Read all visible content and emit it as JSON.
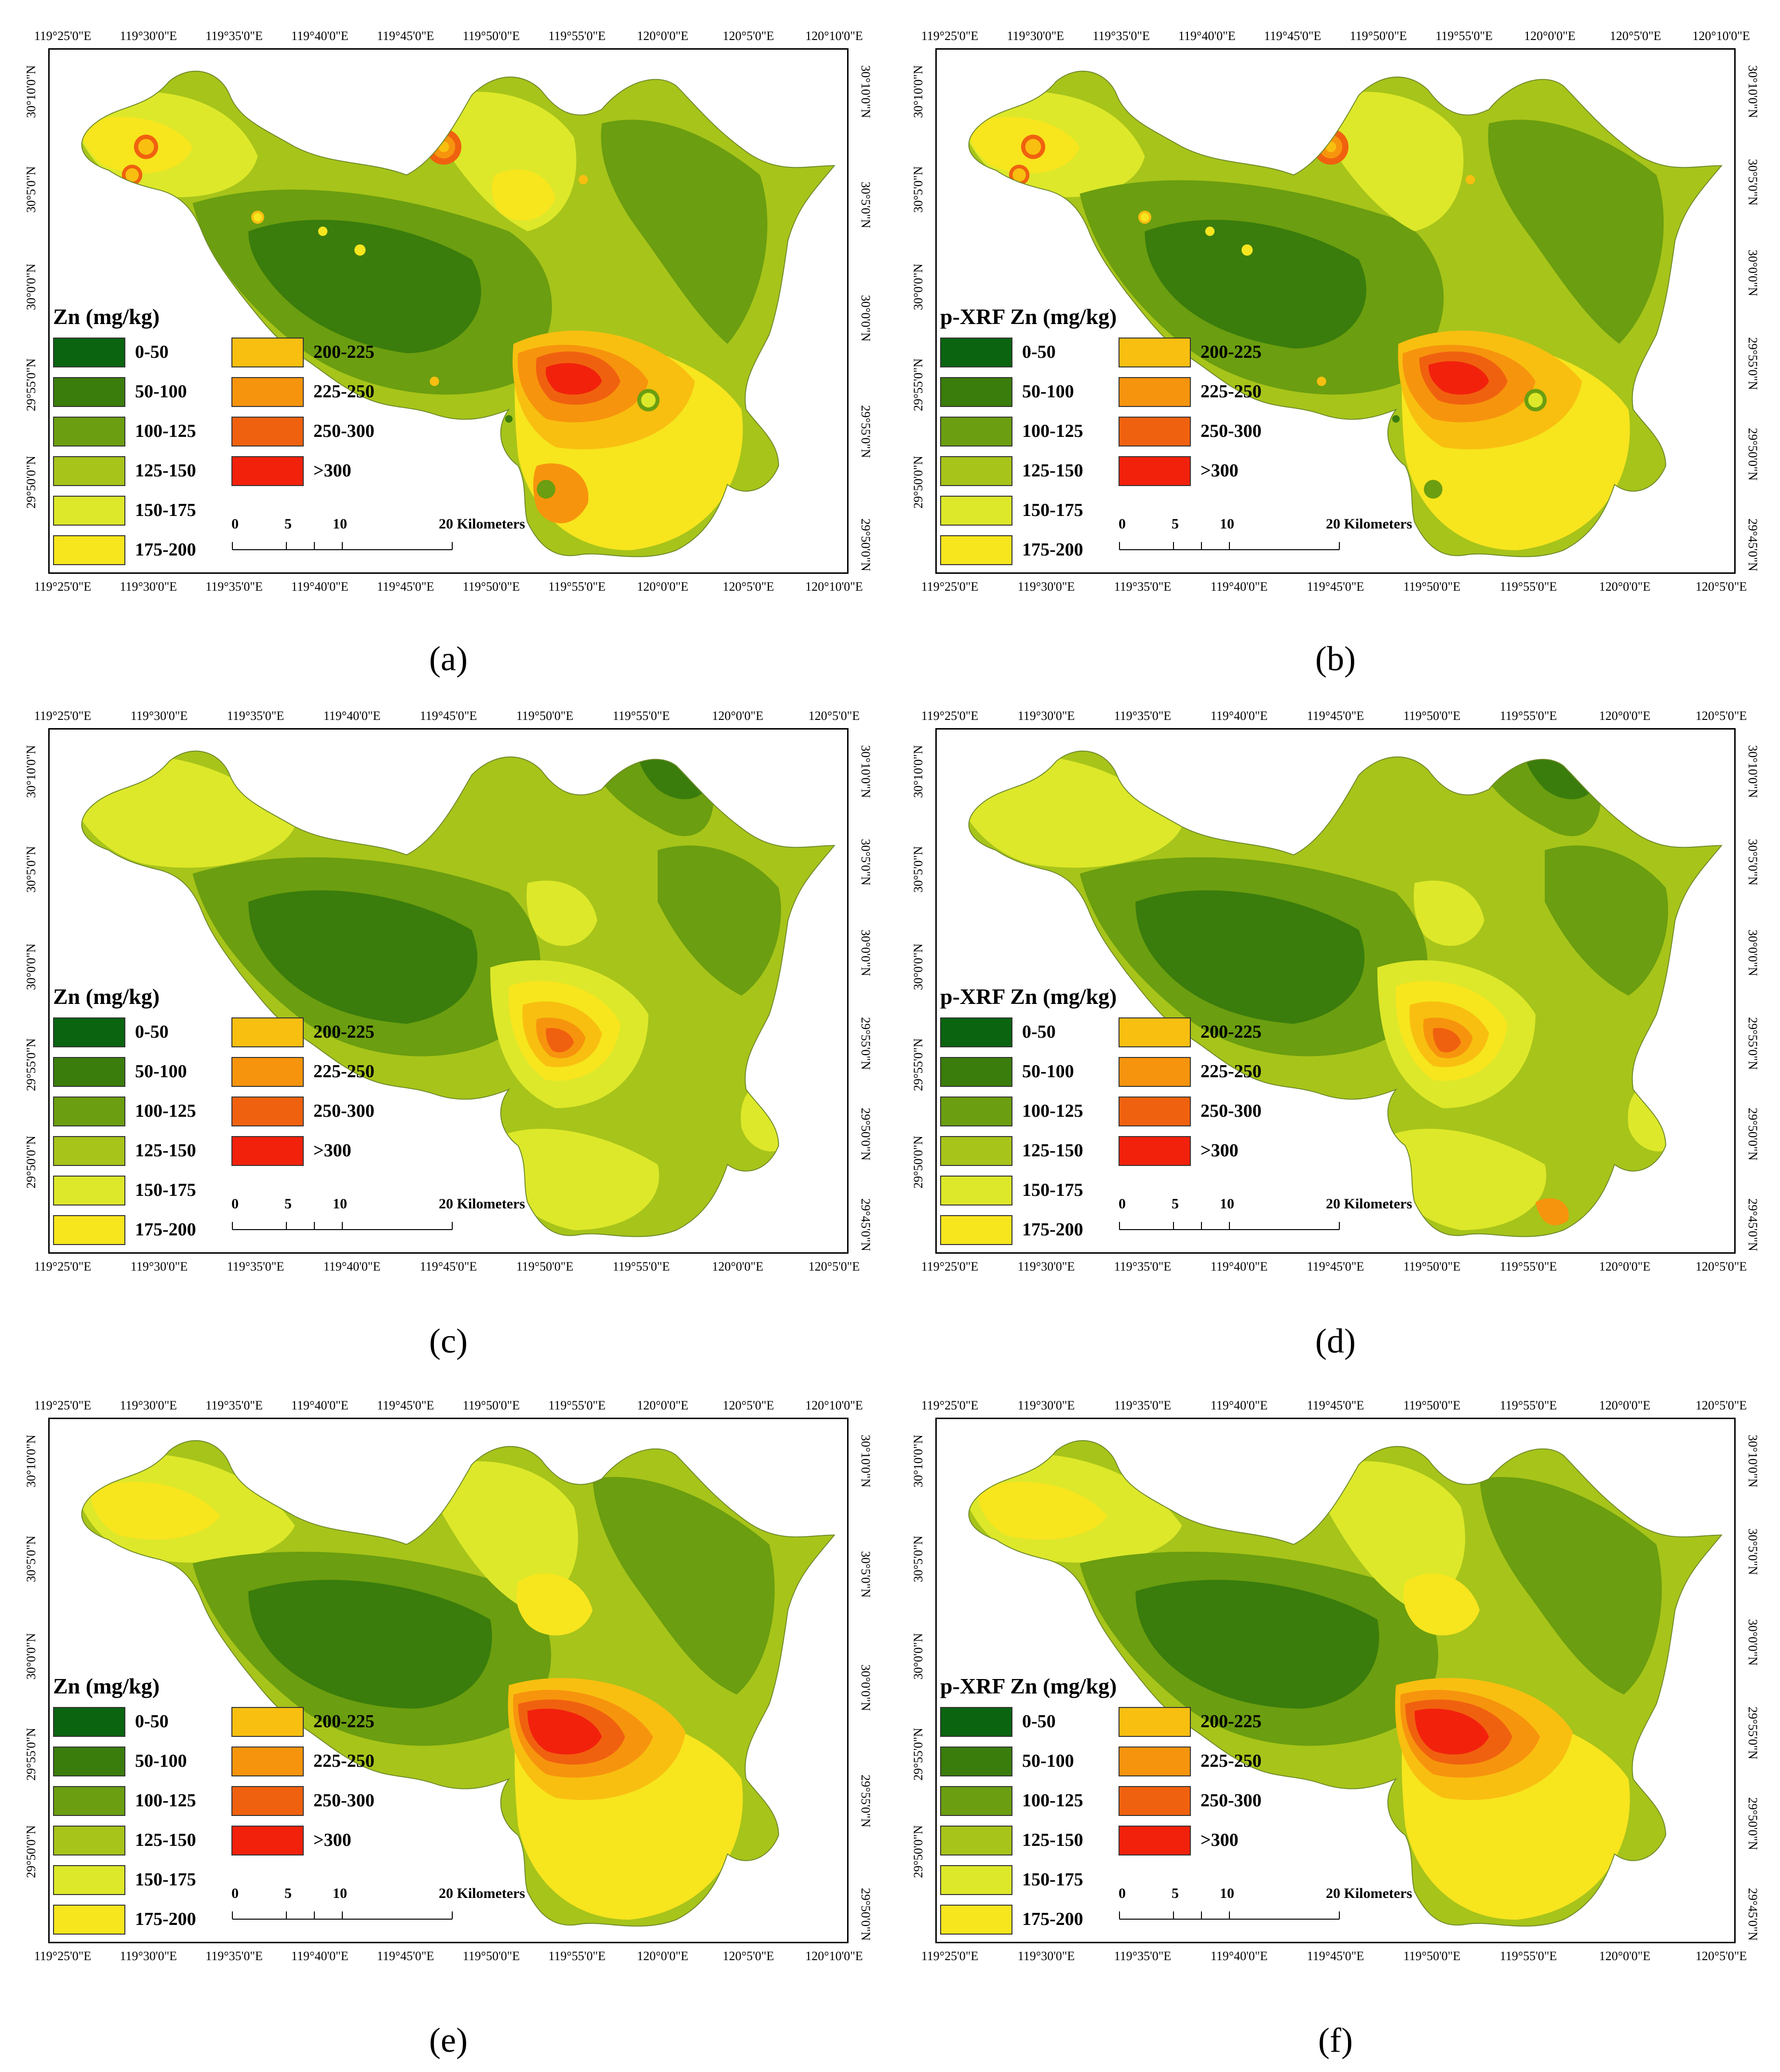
{
  "legend_classes": [
    {
      "label": "0-50",
      "color": "#0a6410"
    },
    {
      "label": "50-100",
      "color": "#3a7d0c"
    },
    {
      "label": "100-125",
      "color": "#6b9e10"
    },
    {
      "label": "125-150",
      "color": "#a7c41a"
    },
    {
      "label": "150-175",
      "color": "#dde82a"
    },
    {
      "label": "175-200",
      "color": "#f7e51e"
    },
    {
      "label": "200-225",
      "color": "#f8bf10"
    },
    {
      "label": "225-250",
      "color": "#f7940d"
    },
    {
      "label": "250-300",
      "color": "#f0610f"
    },
    {
      "label": ">300",
      "color": "#f2210c"
    }
  ],
  "scale": {
    "t0": "0",
    "t5": "5",
    "t10": "10",
    "t20": "20 Kilometers"
  },
  "panels": [
    {
      "id": "a",
      "caption": "(a)",
      "legend_title": "Zn (mg/kg)",
      "top_ticks": [
        "119°25'0\"E",
        "119°30'0\"E",
        "119°35'0\"E",
        "119°40'0\"E",
        "119°45'0\"E",
        "119°50'0\"E",
        "119°55'0\"E",
        "120°0'0\"E",
        "120°5'0\"E",
        "120°10'0\"E"
      ],
      "bottom_ticks": [
        "119°25'0\"E",
        "119°30'0\"E",
        "119°35'0\"E",
        "119°40'0\"E",
        "119°45'0\"E",
        "119°50'0\"E",
        "119°55'0\"E",
        "120°0'0\"E",
        "120°5'0\"E",
        "120°10'0\"E"
      ],
      "left_ticks": [
        "30°10'0\"N",
        "30°5'0\"N",
        "30°0'0\"N",
        "29°55'0\"N",
        "29°50'0\"N"
      ],
      "right_ticks": [
        "30°10'0\"N",
        "30°5'0\"N",
        "30°0'0\"N",
        "29°55'0\"N",
        "29°50'0\"N"
      ]
    },
    {
      "id": "b",
      "caption": "(b)",
      "legend_title": "p-XRF Zn (mg/kg)",
      "top_ticks": [
        "119°25'0\"E",
        "119°30'0\"E",
        "119°35'0\"E",
        "119°40'0\"E",
        "119°45'0\"E",
        "119°50'0\"E",
        "119°55'0\"E",
        "120°0'0\"E",
        "120°5'0\"E",
        "120°10'0\"E"
      ],
      "bottom_ticks": [
        "119°25'0\"E",
        "119°30'0\"E",
        "119°35'0\"E",
        "119°40'0\"E",
        "119°45'0\"E",
        "119°50'0\"E",
        "119°55'0\"E",
        "120°0'0\"E",
        "120°5'0\"E"
      ],
      "left_ticks": [
        "30°10'0\"N",
        "30°5'0\"N",
        "30°0'0\"N",
        "29°55'0\"N",
        "29°50'0\"N"
      ],
      "right_ticks": [
        "30°10'0\"N",
        "30°5'0\"N",
        "30°0'0\"N",
        "29°55'0\"N",
        "29°50'0\"N",
        "29°45'0\"N"
      ]
    },
    {
      "id": "c",
      "caption": "(c)",
      "legend_title": "Zn (mg/kg)",
      "top_ticks": [
        "119°25'0\"E",
        "119°30'0\"E",
        "119°35'0\"E",
        "119°40'0\"E",
        "119°45'0\"E",
        "119°50'0\"E",
        "119°55'0\"E",
        "120°0'0\"E",
        "120°5'0\"E"
      ],
      "bottom_ticks": [
        "119°25'0\"E",
        "119°30'0\"E",
        "119°35'0\"E",
        "119°40'0\"E",
        "119°45'0\"E",
        "119°50'0\"E",
        "119°55'0\"E",
        "120°0'0\"E",
        "120°5'0\"E"
      ],
      "left_ticks": [
        "30°10'0\"N",
        "30°5'0\"N",
        "30°0'0\"N",
        "29°55'0\"N",
        "29°50'0\"N"
      ],
      "right_ticks": [
        "30°10'0\"N",
        "30°5'0\"N",
        "30°0'0\"N",
        "29°55'0\"N",
        "29°50'0\"N",
        "29°45'0\"N"
      ]
    },
    {
      "id": "d",
      "caption": "(d)",
      "legend_title": "p-XRF Zn (mg/kg)",
      "top_ticks": [
        "119°25'0\"E",
        "119°30'0\"E",
        "119°35'0\"E",
        "119°40'0\"E",
        "119°45'0\"E",
        "119°50'0\"E",
        "119°55'0\"E",
        "120°0'0\"E",
        "120°5'0\"E"
      ],
      "bottom_ticks": [
        "119°25'0\"E",
        "119°30'0\"E",
        "119°35'0\"E",
        "119°40'0\"E",
        "119°45'0\"E",
        "119°50'0\"E",
        "119°55'0\"E",
        "120°0'0\"E",
        "120°5'0\"E"
      ],
      "left_ticks": [
        "30°10'0\"N",
        "30°5'0\"N",
        "30°0'0\"N",
        "29°55'0\"N",
        "29°50'0\"N"
      ],
      "right_ticks": [
        "30°10'0\"N",
        "30°5'0\"N",
        "30°0'0\"N",
        "29°55'0\"N",
        "29°50'0\"N",
        "29°45'0\"N"
      ]
    },
    {
      "id": "e",
      "caption": "(e)",
      "legend_title": "Zn (mg/kg)",
      "top_ticks": [
        "119°25'0\"E",
        "119°30'0\"E",
        "119°35'0\"E",
        "119°40'0\"E",
        "119°45'0\"E",
        "119°50'0\"E",
        "119°55'0\"E",
        "120°0'0\"E",
        "120°5'0\"E",
        "120°10'0\"E"
      ],
      "bottom_ticks": [
        "119°25'0\"E",
        "119°30'0\"E",
        "119°35'0\"E",
        "119°40'0\"E",
        "119°45'0\"E",
        "119°50'0\"E",
        "119°55'0\"E",
        "120°0'0\"E",
        "120°5'0\"E",
        "120°10'0\"E"
      ],
      "left_ticks": [
        "30°10'0\"N",
        "30°5'0\"N",
        "30°0'0\"N",
        "29°55'0\"N",
        "29°50'0\"N"
      ],
      "right_ticks": [
        "30°10'0\"N",
        "30°5'0\"N",
        "30°0'0\"N",
        "29°55'0\"N",
        "29°50'0\"N"
      ]
    },
    {
      "id": "f",
      "caption": "(f)",
      "legend_title": "p-XRF Zn (mg/kg)",
      "top_ticks": [
        "119°25'0\"E",
        "119°30'0\"E",
        "119°35'0\"E",
        "119°40'0\"E",
        "119°45'0\"E",
        "119°50'0\"E",
        "119°55'0\"E",
        "120°0'0\"E",
        "120°5'0\"E"
      ],
      "bottom_ticks": [
        "119°25'0\"E",
        "119°30'0\"E",
        "119°35'0\"E",
        "119°40'0\"E",
        "119°45'0\"E",
        "119°50'0\"E",
        "119°55'0\"E",
        "120°0'0\"E",
        "120°5'0\"E"
      ],
      "left_ticks": [
        "30°10'0\"N",
        "30°5'0\"N",
        "30°0'0\"N",
        "29°55'0\"N",
        "29°50'0\"N"
      ],
      "right_ticks": [
        "30°10'0\"N",
        "30°5'0\"N",
        "30°0'0\"N",
        "29°55'0\"N",
        "29°50'0\"N",
        "29°45'0\"N"
      ]
    }
  ]
}
